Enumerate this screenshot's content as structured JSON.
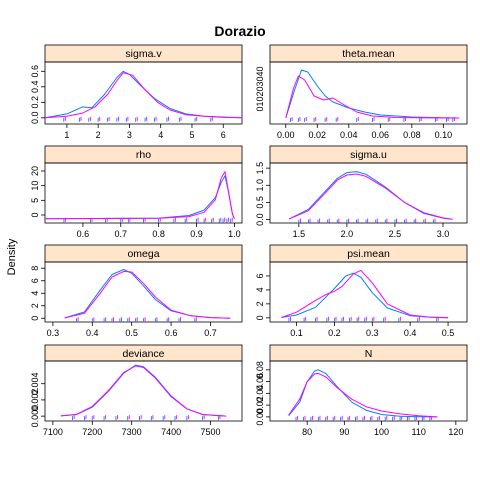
{
  "title": "Dorazio",
  "ylabel": "Density",
  "colors": {
    "strip_fill": "#FFE5CC",
    "series_1": "#0080FF",
    "series_2": "#FF00FF",
    "frame": "#000000"
  },
  "chart_data": [
    {
      "type": "density",
      "strip_label": "sigma.v",
      "xlim": [
        0.3,
        6.6
      ],
      "ylim": [
        -0.08,
        0.72
      ],
      "xticks": [
        1,
        2,
        3,
        4,
        5,
        6
      ],
      "yticks": [
        0.0,
        0.2,
        0.4,
        0.6
      ],
      "rug": [
        0.9,
        1.4,
        1.7,
        2.0,
        2.3,
        2.6,
        2.9,
        3.2,
        3.5,
        3.8,
        4.2,
        4.6,
        5.1,
        5.6
      ],
      "series": [
        {
          "x": [
            0.3,
            1.0,
            1.5,
            1.8,
            2.2,
            2.6,
            2.8,
            3.0,
            3.4,
            3.8,
            4.3,
            4.8,
            5.4,
            6.0,
            6.6
          ],
          "y": [
            0.0,
            0.05,
            0.14,
            0.13,
            0.3,
            0.52,
            0.6,
            0.56,
            0.4,
            0.25,
            0.12,
            0.05,
            0.02,
            0.01,
            0.0
          ]
        },
        {
          "x": [
            0.3,
            1.0,
            1.5,
            1.9,
            2.3,
            2.6,
            2.8,
            3.1,
            3.5,
            3.9,
            4.3,
            4.8,
            5.4,
            6.0,
            6.6
          ],
          "y": [
            0.0,
            0.02,
            0.06,
            0.14,
            0.3,
            0.48,
            0.58,
            0.55,
            0.36,
            0.2,
            0.1,
            0.04,
            0.02,
            0.005,
            0.0
          ]
        }
      ]
    },
    {
      "type": "density",
      "strip_label": "theta.mean",
      "xlim": [
        -0.01,
        0.115
      ],
      "ylim": [
        -6,
        56
      ],
      "xticks": [
        0.0,
        0.02,
        0.04,
        0.06,
        0.08,
        0.1
      ],
      "ytick_labels_joined": "010203040",
      "rug": [
        0.003,
        0.008,
        0.012,
        0.018,
        0.025,
        0.032,
        0.045,
        0.055,
        0.065,
        0.075,
        0.085,
        0.095,
        0.102,
        0.106
      ],
      "series": [
        {
          "x": [
            0.0,
            0.005,
            0.01,
            0.014,
            0.02,
            0.025,
            0.03,
            0.04,
            0.05,
            0.06,
            0.08,
            0.1,
            0.11
          ],
          "y": [
            0,
            25,
            48,
            46,
            32,
            22,
            16,
            10,
            6,
            3,
            1,
            0.2,
            0
          ]
        },
        {
          "x": [
            0.0,
            0.005,
            0.008,
            0.012,
            0.018,
            0.024,
            0.03,
            0.035,
            0.045,
            0.055,
            0.07,
            0.09,
            0.11
          ],
          "y": [
            0,
            30,
            42,
            38,
            22,
            18,
            20,
            15,
            6,
            2,
            0.5,
            0.1,
            0
          ]
        }
      ]
    },
    {
      "type": "density",
      "strip_label": "rho",
      "xlim": [
        0.5,
        1.02
      ],
      "ylim": [
        -2,
        26
      ],
      "xticks": [
        0.6,
        0.7,
        0.8,
        0.9,
        1.0
      ],
      "ytick_labels": [
        "0",
        "5",
        "10",
        "20"
      ],
      "rug": [
        0.55,
        0.62,
        0.66,
        0.7,
        0.72,
        0.76,
        0.8,
        0.84,
        0.87,
        0.9,
        0.92,
        0.94,
        0.96,
        0.97,
        0.98,
        0.99
      ],
      "series": [
        {
          "x": [
            0.5,
            0.8,
            0.88,
            0.92,
            0.95,
            0.965,
            0.975,
            0.985,
            0.995,
            1.0
          ],
          "y": [
            0,
            0.3,
            1.5,
            4,
            10,
            17,
            20,
            12,
            2,
            0
          ]
        },
        {
          "x": [
            0.5,
            0.8,
            0.88,
            0.92,
            0.95,
            0.965,
            0.975,
            0.985,
            0.995,
            1.0
          ],
          "y": [
            0,
            0.2,
            1.0,
            3,
            9,
            19,
            22,
            12,
            2,
            0
          ]
        }
      ]
    },
    {
      "type": "density",
      "strip_label": "sigma.u",
      "xlim": [
        1.2,
        3.25
      ],
      "ylim": [
        -0.1,
        1.65
      ],
      "xticks": [
        1.5,
        2.0,
        2.5,
        3.0
      ],
      "yticks": [
        0.0,
        0.5,
        1.0,
        1.5
      ],
      "rug": [
        1.5,
        1.6,
        1.7,
        1.8,
        1.9,
        2.0,
        2.1,
        2.2,
        2.3,
        2.4,
        2.5,
        2.6,
        2.7,
        2.8,
        2.9
      ],
      "series": [
        {
          "x": [
            1.4,
            1.6,
            1.8,
            1.9,
            2.0,
            2.1,
            2.2,
            2.4,
            2.6,
            2.8,
            3.0,
            3.1
          ],
          "y": [
            0.02,
            0.3,
            0.9,
            1.2,
            1.37,
            1.4,
            1.32,
            0.95,
            0.5,
            0.18,
            0.04,
            0.01
          ]
        },
        {
          "x": [
            1.4,
            1.6,
            1.8,
            1.9,
            2.0,
            2.1,
            2.2,
            2.4,
            2.6,
            2.8,
            3.0,
            3.1
          ],
          "y": [
            0.02,
            0.26,
            0.85,
            1.15,
            1.3,
            1.33,
            1.26,
            0.92,
            0.5,
            0.2,
            0.05,
            0.01
          ]
        }
      ]
    },
    {
      "type": "density",
      "strip_label": "omega",
      "xlim": [
        0.28,
        0.78
      ],
      "ylim": [
        -0.6,
        9
      ],
      "xticks": [
        0.3,
        0.4,
        0.5,
        0.6,
        0.7
      ],
      "yticks": [
        0,
        2,
        4,
        6,
        8
      ],
      "rug": [
        0.36,
        0.4,
        0.43,
        0.45,
        0.47,
        0.49,
        0.51,
        0.53,
        0.56,
        0.59,
        0.62,
        0.66
      ],
      "series": [
        {
          "x": [
            0.33,
            0.38,
            0.42,
            0.45,
            0.48,
            0.5,
            0.53,
            0.56,
            0.6,
            0.65,
            0.7,
            0.75
          ],
          "y": [
            0.05,
            1.0,
            4.5,
            7.0,
            7.8,
            7.2,
            5.2,
            3.0,
            1.2,
            0.4,
            0.1,
            0.0
          ]
        },
        {
          "x": [
            0.33,
            0.38,
            0.42,
            0.45,
            0.48,
            0.5,
            0.53,
            0.56,
            0.6,
            0.65,
            0.7,
            0.75
          ],
          "y": [
            0.05,
            0.8,
            4.0,
            6.6,
            7.5,
            7.4,
            5.6,
            3.4,
            1.3,
            0.4,
            0.1,
            0.0
          ]
        }
      ]
    },
    {
      "type": "density",
      "strip_label": "psi.mean",
      "xlim": [
        0.03,
        0.55
      ],
      "ylim": [
        -0.6,
        8
      ],
      "xticks": [
        0.1,
        0.2,
        0.3,
        0.4,
        0.5
      ],
      "yticks": [
        0,
        2,
        4,
        6
      ],
      "rug": [
        0.08,
        0.12,
        0.15,
        0.18,
        0.2,
        0.22,
        0.24,
        0.26,
        0.28,
        0.3,
        0.33,
        0.37,
        0.42,
        0.47
      ],
      "series": [
        {
          "x": [
            0.06,
            0.1,
            0.15,
            0.2,
            0.23,
            0.25,
            0.27,
            0.3,
            0.34,
            0.4,
            0.45,
            0.5
          ],
          "y": [
            0.05,
            0.4,
            1.5,
            4.2,
            6.0,
            6.4,
            5.8,
            3.6,
            1.4,
            0.3,
            0.1,
            0.0
          ]
        },
        {
          "x": [
            0.06,
            0.1,
            0.15,
            0.18,
            0.2,
            0.22,
            0.25,
            0.27,
            0.3,
            0.34,
            0.4,
            0.45,
            0.5
          ],
          "y": [
            0.05,
            0.8,
            2.5,
            3.4,
            3.8,
            4.5,
            6.3,
            6.8,
            5.0,
            2.0,
            0.4,
            0.1,
            0.0
          ]
        }
      ]
    },
    {
      "type": "density",
      "strip_label": "deviance",
      "xlim": [
        7080,
        7580
      ],
      "ylim": [
        -0.0006,
        0.0068
      ],
      "xticks": [
        7100,
        7200,
        7300,
        7400,
        7500
      ],
      "yticks": [
        0.0,
        0.002,
        0.004
      ],
      "rug": [
        7150,
        7180,
        7200,
        7230,
        7260,
        7290,
        7320,
        7350,
        7380,
        7410,
        7440,
        7480,
        7520
      ],
      "series": [
        {
          "x": [
            7120,
            7160,
            7200,
            7240,
            7280,
            7310,
            7330,
            7360,
            7400,
            7440,
            7480,
            7540
          ],
          "y": [
            3e-05,
            0.0002,
            0.0011,
            0.003,
            0.0053,
            0.0063,
            0.0061,
            0.0048,
            0.0025,
            0.0009,
            0.0002,
            0.0
          ]
        },
        {
          "x": [
            7120,
            7160,
            7200,
            7240,
            7280,
            7310,
            7330,
            7360,
            7400,
            7440,
            7480,
            7540
          ],
          "y": [
            3e-05,
            0.00022,
            0.0012,
            0.0031,
            0.0054,
            0.0062,
            0.006,
            0.0047,
            0.0024,
            0.0009,
            0.0002,
            0.0
          ]
        }
      ]
    },
    {
      "type": "density",
      "strip_label": "N",
      "xlim": [
        70,
        123
      ],
      "ylim": [
        -0.007,
        0.095
      ],
      "xticks": [
        80,
        90,
        100,
        110,
        120
      ],
      "yticks": [
        0.0,
        0.02,
        0.04,
        0.06,
        0.08
      ],
      "rug": [
        77,
        79,
        81,
        83,
        85,
        87,
        89,
        91,
        93,
        95,
        97,
        99,
        101,
        103,
        105,
        107,
        109,
        111,
        113
      ],
      "series": [
        {
          "x": [
            75,
            78,
            80,
            82,
            83,
            85,
            88,
            92,
            96,
            100,
            105,
            110,
            115
          ],
          "y": [
            0.002,
            0.025,
            0.06,
            0.078,
            0.08,
            0.074,
            0.052,
            0.025,
            0.011,
            0.004,
            0.001,
            0.0003,
            0.0
          ]
        },
        {
          "x": [
            75,
            78,
            80,
            82,
            83,
            85,
            88,
            92,
            96,
            100,
            105,
            110,
            115
          ],
          "y": [
            0.003,
            0.03,
            0.06,
            0.073,
            0.074,
            0.068,
            0.05,
            0.03,
            0.017,
            0.01,
            0.005,
            0.002,
            0.0
          ]
        }
      ]
    }
  ]
}
